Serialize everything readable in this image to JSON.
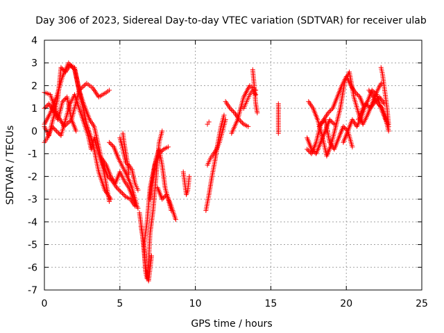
{
  "chart_data": {
    "type": "scatter",
    "title": "Day 306 of 2023, Sidereal Day-to-day VTEC variation (SDTVAR) for receiver ulab",
    "xlabel": "GPS time / hours",
    "ylabel": "SDTVAR / TECUs",
    "xlim": [
      0,
      25
    ],
    "ylim": [
      -7,
      4
    ],
    "xticks": [
      0,
      5,
      10,
      15,
      20,
      25
    ],
    "yticks": [
      -7,
      -6,
      -5,
      -4,
      -3,
      -2,
      -1,
      0,
      1,
      2,
      3,
      4
    ],
    "grid": true,
    "marker": "+",
    "series": [
      {
        "name": "SDTVAR",
        "color": "#ff0000",
        "segments": [
          {
            "x": [
              0.0,
              0.3,
              0.6,
              0.9,
              1.1,
              1.4,
              1.7,
              2.0,
              2.3,
              2.6,
              3.0,
              3.3,
              3.7,
              4.0,
              4.3
            ],
            "y": [
              0.2,
              -0.2,
              0.6,
              1.5,
              2.8,
              2.6,
              2.9,
              2.8,
              1.8,
              1.2,
              0.5,
              0.2,
              -1.0,
              -2.0,
              -3.1
            ]
          },
          {
            "x": [
              0.0,
              0.4,
              0.8,
              1.2,
              1.6,
              2.0,
              2.4,
              2.8,
              3.2,
              3.6,
              4.0,
              4.4
            ],
            "y": [
              0.3,
              0.8,
              1.5,
              2.4,
              3.0,
              2.7,
              1.5,
              0.3,
              -0.5,
              -1.8,
              -2.6,
              -3.0
            ]
          },
          {
            "x": [
              0.0,
              0.4,
              0.8,
              1.3,
              1.8,
              2.3,
              2.8,
              3.2,
              3.6,
              4.1,
              4.3
            ],
            "y": [
              1.7,
              1.6,
              0.8,
              0.2,
              0.5,
              1.8,
              2.1,
              1.9,
              1.5,
              1.7,
              1.8
            ]
          },
          {
            "x": [
              0.0,
              0.3,
              0.6,
              0.9,
              1.2,
              1.5,
              1.8,
              2.1
            ],
            "y": [
              1.0,
              1.2,
              0.9,
              0.5,
              1.3,
              1.5,
              0.5,
              0.0
            ]
          },
          {
            "x": [
              0.0,
              0.2,
              0.5,
              0.8,
              1.1,
              1.4,
              1.7,
              2.0,
              2.3,
              2.6,
              2.9,
              3.1,
              3.3,
              3.6,
              3.9,
              4.2,
              4.5,
              4.8,
              5.1,
              5.4,
              5.7,
              6.0
            ],
            "y": [
              -0.5,
              -0.3,
              0.2,
              0.0,
              -0.2,
              0.5,
              1.2,
              1.6,
              1.0,
              0.4,
              -0.2,
              -0.8,
              -0.3,
              -1.0,
              -1.5,
              -2.0,
              -2.2,
              -2.5,
              -2.7,
              -2.9,
              -3.0,
              -3.3
            ]
          },
          {
            "x": [
              3.8,
              4.1,
              4.4,
              4.7,
              5.0,
              5.3,
              5.6,
              5.9,
              6.2
            ],
            "y": [
              -1.2,
              -1.5,
              -2.0,
              -2.3,
              -1.8,
              -2.2,
              -2.5,
              -3.0,
              -3.4
            ]
          },
          {
            "x": [
              4.3,
              4.6,
              4.9,
              5.2,
              5.5,
              5.8,
              6.1
            ],
            "y": [
              -0.5,
              -0.7,
              -1.2,
              -1.6,
              -2.0,
              -2.5,
              -3.2
            ]
          },
          {
            "x": [
              5.0,
              5.2,
              5.4,
              5.6,
              5.8,
              6.0,
              6.2
            ],
            "y": [
              -0.3,
              -0.8,
              -1.4,
              -1.5,
              -1.7,
              -2.3,
              -2.6
            ]
          },
          {
            "x": [
              5.2,
              5.3,
              5.4,
              5.5,
              5.6
            ],
            "y": [
              -0.1,
              -0.6,
              -1.0,
              -1.4,
              -1.9
            ]
          },
          {
            "x": [
              6.3,
              6.5,
              6.7,
              6.9,
              7.1
            ],
            "y": [
              -3.6,
              -4.6,
              -6.0,
              -6.6,
              -5.5
            ]
          },
          {
            "x": [
              6.6,
              6.7,
              6.8,
              6.9,
              7.0,
              7.2,
              7.4,
              7.6,
              7.8
            ],
            "y": [
              -5.0,
              -6.2,
              -6.5,
              -5.8,
              -4.5,
              -3.5,
              -2.0,
              -0.5,
              0.0
            ]
          },
          {
            "x": [
              6.4,
              6.6,
              6.8,
              7.0,
              7.3,
              7.6,
              7.9,
              8.2
            ],
            "y": [
              -4.2,
              -5.0,
              -4.0,
              -2.5,
              -1.5,
              -1.0,
              -0.8,
              -0.7
            ]
          },
          {
            "x": [
              7.0,
              7.2,
              7.4,
              7.6,
              7.8,
              8.0,
              8.2,
              8.4
            ],
            "y": [
              -3.0,
              -2.0,
              -1.2,
              -0.8,
              -1.5,
              -2.5,
              -3.0,
              -3.5
            ]
          },
          {
            "x": [
              7.5,
              7.8,
              8.1,
              8.4,
              8.7
            ],
            "y": [
              -2.5,
              -3.0,
              -2.8,
              -3.3,
              -3.9
            ]
          },
          {
            "x": [
              9.2,
              9.3,
              9.4,
              9.5,
              9.6
            ],
            "y": [
              -1.8,
              -2.3,
              -2.8,
              -2.6,
              -2.0
            ]
          },
          {
            "x": [
              10.7,
              10.9,
              11.1,
              11.3,
              11.5,
              11.7,
              11.9
            ],
            "y": [
              -3.5,
              -2.8,
              -2.0,
              -1.3,
              -0.5,
              0.2,
              0.7
            ]
          },
          {
            "x": [
              10.8,
              11.0,
              11.2,
              11.4,
              11.6,
              11.8,
              12.0
            ],
            "y": [
              -1.5,
              -1.2,
              -1.0,
              -0.8,
              -0.5,
              0.0,
              0.5
            ]
          },
          {
            "x": [
              10.8,
              10.9
            ],
            "y": [
              0.3,
              0.4
            ]
          },
          {
            "x": [
              12.0,
              12.3,
              12.6,
              12.9,
              13.2,
              13.5
            ],
            "y": [
              1.3,
              1.0,
              0.8,
              0.5,
              0.3,
              0.2
            ]
          },
          {
            "x": [
              12.4,
              12.8,
              13.2,
              13.6,
              14.0
            ],
            "y": [
              -0.1,
              0.5,
              1.5,
              2.0,
              1.8
            ]
          },
          {
            "x": [
              13.2,
              13.4,
              13.6,
              13.8,
              14.0
            ],
            "y": [
              1.0,
              1.3,
              1.6,
              1.8,
              1.6
            ]
          },
          {
            "x": [
              13.8,
              13.9,
              14.0,
              14.1
            ],
            "y": [
              2.7,
              2.0,
              1.2,
              0.8
            ]
          },
          {
            "x": [
              15.5,
              15.5,
              15.5,
              15.5
            ],
            "y": [
              1.2,
              0.7,
              0.2,
              -0.1
            ]
          },
          {
            "x": [
              17.4,
              17.7,
              18.0,
              18.3,
              18.6,
              18.9,
              19.2,
              19.5,
              19.8,
              20.1,
              20.4
            ],
            "y": [
              -0.8,
              -1.0,
              -0.5,
              0.3,
              0.5,
              -0.5,
              -0.8,
              -0.3,
              0.2,
              0.0,
              -0.7
            ]
          },
          {
            "x": [
              17.5,
              17.8,
              18.1,
              18.4,
              18.7,
              19.0,
              19.3,
              19.6,
              19.9,
              20.2,
              20.5,
              20.8,
              21.1,
              21.4,
              21.7,
              22.0,
              22.3
            ],
            "y": [
              1.3,
              1.0,
              0.5,
              -0.2,
              -1.1,
              -0.6,
              0.2,
              1.0,
              2.2,
              2.6,
              1.5,
              0.8,
              0.3,
              0.7,
              1.2,
              1.7,
              2.1
            ]
          },
          {
            "x": [
              17.4,
              17.7,
              18.0,
              18.3,
              18.6,
              18.9,
              19.2
            ],
            "y": [
              -0.3,
              -0.8,
              -1.0,
              -0.5,
              0.0,
              0.5,
              0.3
            ]
          },
          {
            "x": [
              18.2,
              18.5,
              18.8,
              19.1,
              19.4,
              19.7,
              20.0,
              20.3,
              20.6,
              20.9,
              21.2
            ],
            "y": [
              0.2,
              0.5,
              0.8,
              1.0,
              1.5,
              2.0,
              2.4,
              2.0,
              1.7,
              1.5,
              1.0
            ]
          },
          {
            "x": [
              19.8,
              20.1,
              20.4,
              20.7,
              21.0,
              21.3,
              21.6,
              21.9,
              22.2,
              22.5
            ],
            "y": [
              -0.5,
              0.0,
              0.5,
              0.2,
              0.6,
              1.2,
              1.0,
              1.3,
              1.5,
              1.2
            ]
          },
          {
            "x": [
              20.8,
              21.1,
              21.4,
              21.7,
              22.0,
              22.3,
              22.6,
              22.8
            ],
            "y": [
              0.5,
              1.0,
              1.3,
              1.8,
              1.6,
              1.0,
              0.5,
              0.2
            ]
          },
          {
            "x": [
              22.3,
              22.4,
              22.5,
              22.6,
              22.7,
              22.8
            ],
            "y": [
              2.8,
              2.5,
              2.0,
              1.5,
              1.0,
              0.3
            ]
          },
          {
            "x": [
              21.5,
              21.8,
              22.1,
              22.4,
              22.6,
              22.8
            ],
            "y": [
              1.8,
              1.5,
              1.2,
              1.0,
              0.6,
              0.0
            ]
          }
        ]
      }
    ]
  }
}
